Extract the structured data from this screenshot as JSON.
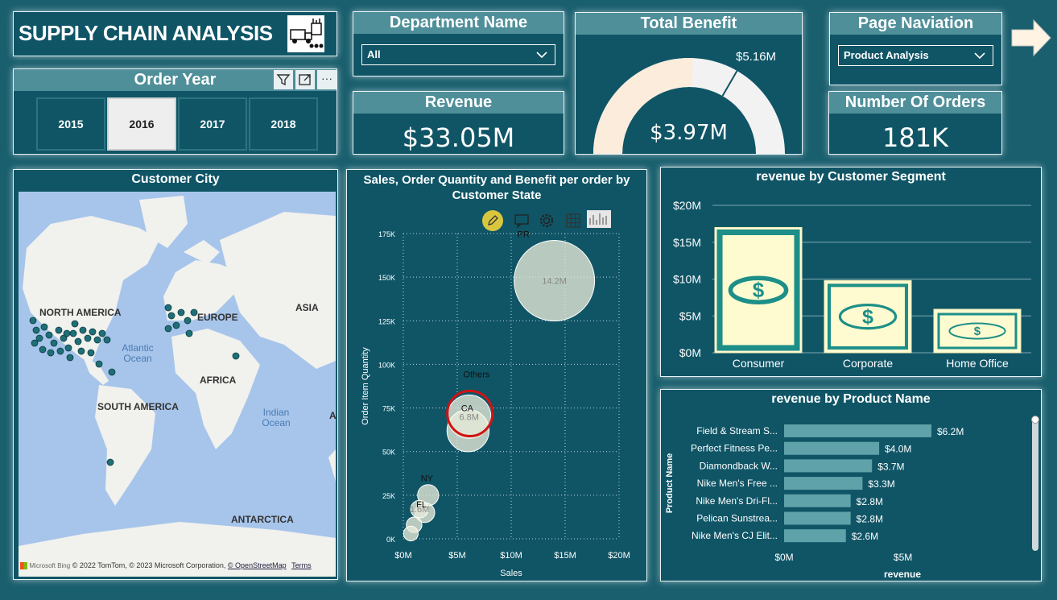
{
  "header": {
    "title": "SUPPLY CHAIN ANALYSIS",
    "logo_icon": "supply-chain-truck-icon"
  },
  "order_year": {
    "title": "Order Year",
    "years": [
      "2015",
      "2016",
      "2017",
      "2018"
    ],
    "selected": "2016",
    "toolbar_icons": [
      "filter-icon",
      "focus-mode-icon",
      "more-options-icon"
    ],
    "more_glyph": "···"
  },
  "department": {
    "title": "Department Name",
    "value": "All"
  },
  "revenue": {
    "title": "Revenue",
    "value": "$33.05M"
  },
  "total_benefit": {
    "title": "Total Benefit",
    "value": "$3.97M",
    "target_label": "$5.16M"
  },
  "page_navigation": {
    "title": "Page Naviation",
    "value": "Product Analysis"
  },
  "orders": {
    "title": "Number Of Orders",
    "value": "181K"
  },
  "customer_city": {
    "title": "Customer City",
    "labels": [
      "NORTH AMERICA",
      "EUROPE",
      "ASIA",
      "Atlantic",
      "Ocean",
      "AFRICA",
      "SOUTH AMERICA",
      "Indian",
      "Ocean",
      "ANTARCTICA",
      "A"
    ],
    "attribution": "© 2022 TomTom, © 2023 Microsoft Corporation,",
    "osm_link": "© OpenStreetMap",
    "terms_link": "Terms",
    "ms_brand": "Microsoft Bing"
  },
  "scatter": {
    "title_line1": "Sales, Order Quantity and Benefit per order by",
    "title_line2": "Customer State",
    "toolbar_icons": [
      "edit-pencil-icon",
      "comment-icon",
      "settings-gear-icon",
      "grid-icon",
      "chart-type-icon"
    ]
  },
  "segment": {
    "title": "revenue by Customer Segment"
  },
  "product": {
    "title": "revenue by Product Name"
  },
  "chart_data": [
    {
      "type": "scatter",
      "title": "Sales, Order Quantity and Benefit per order by Customer State",
      "xlabel": "Sales",
      "ylabel": "Order Item Quantity",
      "xlim": [
        0,
        20
      ],
      "ylim": [
        0,
        175000
      ],
      "x_ticks": [
        "$0M",
        "$5M",
        "$10M",
        "$15M",
        "$20M"
      ],
      "y_ticks": [
        "0K",
        "25K",
        "50K",
        "75K",
        "100K",
        "125K",
        "150K",
        "175K"
      ],
      "grid": true,
      "points": [
        {
          "label": "PR",
          "x": 14.0,
          "y": 148000,
          "size_label": "14.2M",
          "size": 14.2
        },
        {
          "label": "Others",
          "x": 6.0,
          "y": 62000,
          "size_label": "",
          "size": 6.5
        },
        {
          "label": "CA",
          "x": 6.1,
          "y": 70000,
          "size_label": "6.8M",
          "size": 6.8
        },
        {
          "label": "NY",
          "x": 2.3,
          "y": 25000,
          "size_label": "",
          "size": 2.3
        },
        {
          "label": "FL",
          "x": 1.5,
          "y": 17000,
          "size_label": "1.6M",
          "size": 1.6
        },
        {
          "label": "",
          "x": 2.0,
          "y": 15000,
          "size_label": "",
          "size": 2.0
        },
        {
          "label": "",
          "x": 1.0,
          "y": 8000,
          "size_label": "",
          "size": 1.2
        },
        {
          "label": "",
          "x": 0.7,
          "y": 3000,
          "size_label": "",
          "size": 1.0
        }
      ],
      "highlight": "CA"
    },
    {
      "type": "bar",
      "title": "revenue by Customer Segment",
      "categories": [
        "Consumer",
        "Corporate",
        "Home Office"
      ],
      "values": [
        17.0,
        9.8,
        5.9
      ],
      "ylim": [
        0,
        20
      ],
      "y_ticks": [
        "$0M",
        "$5M",
        "$10M",
        "$15M",
        "$20M"
      ],
      "xlabel": "",
      "ylabel": ""
    },
    {
      "type": "bar",
      "orientation": "horizontal",
      "title": "revenue by Product Name",
      "categories": [
        "Field & Stream S...",
        "Perfect Fitness Pe...",
        "Diamondback W...",
        "Nike Men's Free ...",
        "Nike Men's Dri-Fl...",
        "Pelican Sunstrea...",
        "Nike Men's CJ Elit..."
      ],
      "values": [
        6.2,
        4.0,
        3.7,
        3.3,
        2.8,
        2.8,
        2.6
      ],
      "value_labels": [
        "$6.2M",
        "$4.0M",
        "$3.7M",
        "$3.3M",
        "$2.8M",
        "$2.8M",
        "$2.6M"
      ],
      "x_ticks": [
        "$0M",
        "$5M"
      ],
      "xlim": [
        0,
        8.3
      ],
      "xlabel": "revenue",
      "ylabel": "Product Name"
    }
  ]
}
